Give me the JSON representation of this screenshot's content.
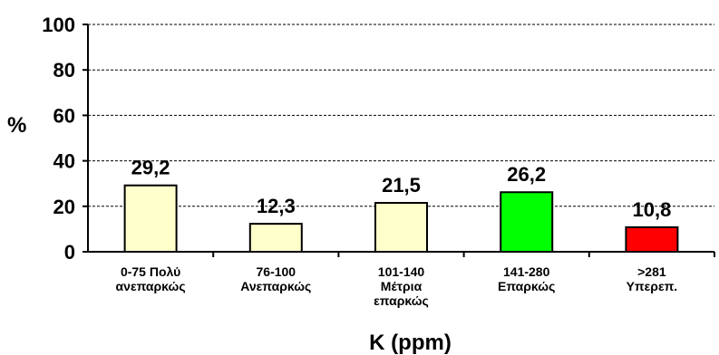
{
  "chart_data": {
    "type": "bar",
    "categories": [
      [
        "0-75 Πολύ",
        "ανεπαρκώς"
      ],
      [
        "76-100",
        "Ανεπαρκώς"
      ],
      [
        "101-140",
        "Μέτρια",
        "επαρκώς"
      ],
      [
        "141-280",
        "Επαρκώς"
      ],
      [
        ">281",
        "Υπερεπ."
      ]
    ],
    "values": [
      29.2,
      12.3,
      21.5,
      26.2,
      10.8
    ],
    "data_labels": [
      "29,2",
      "12,3",
      "21,5",
      "26,2",
      "10,8"
    ],
    "bar_colors": [
      "#ffffcc",
      "#ffffcc",
      "#ffffcc",
      "#00ff00",
      "#ff0000"
    ],
    "ylabel": "%",
    "xlabel": "K  (ppm)",
    "ylim": [
      0,
      100
    ],
    "yticks": [
      "0",
      "20",
      "40",
      "60",
      "80",
      "100"
    ],
    "grid": "horizontal dashed"
  }
}
